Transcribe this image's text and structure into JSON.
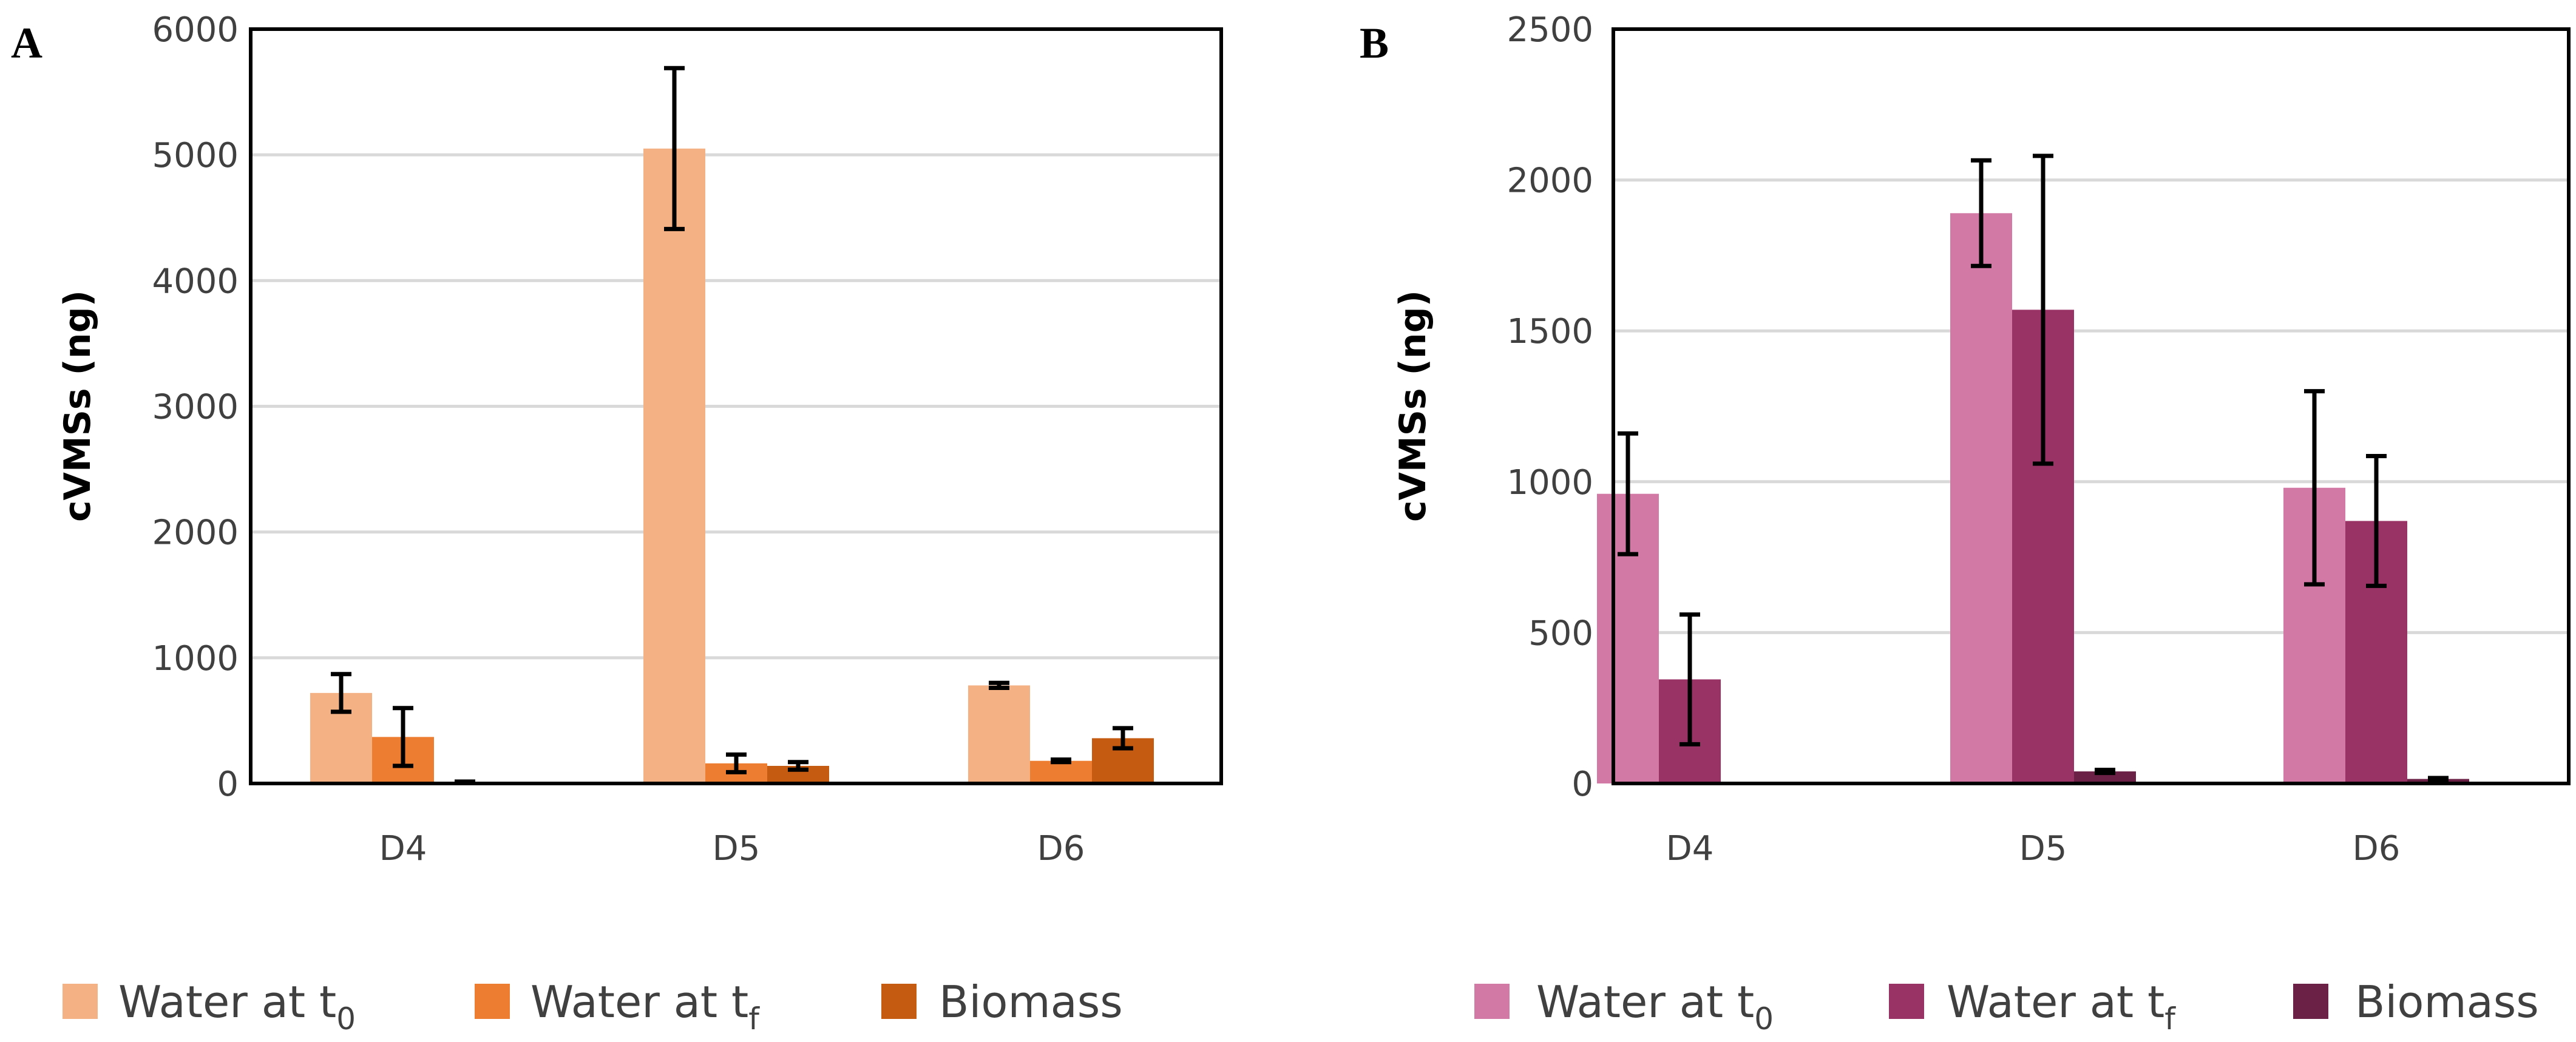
{
  "chart_data": [
    {
      "type": "bar",
      "panel_label": "A",
      "ylabel": "cVMSs (ng)",
      "xlabel": "",
      "ylim": [
        0,
        6000
      ],
      "yticks": [
        0,
        1000,
        2000,
        3000,
        4000,
        5000,
        6000
      ],
      "grid": true,
      "categories": [
        "D4",
        "D5",
        "D6"
      ],
      "series": [
        {
          "name": "Water at t",
          "subscript": "0",
          "color": "#f4b183",
          "values": [
            720,
            5050,
            780
          ],
          "errors": [
            150,
            640,
            20
          ]
        },
        {
          "name": "Water at t",
          "subscript": "f",
          "color": "#ed7d31",
          "values": [
            370,
            160,
            180
          ],
          "errors": [
            230,
            70,
            10
          ]
        },
        {
          "name": "Biomass",
          "subscript": "",
          "color": "#c55a11",
          "values": [
            10,
            140,
            360
          ],
          "errors": [
            5,
            30,
            80
          ]
        }
      ],
      "legend_position": "bottom"
    },
    {
      "type": "bar",
      "panel_label": "B",
      "ylabel": "cVMSs (ng)",
      "xlabel": "",
      "ylim": [
        0,
        2500
      ],
      "yticks": [
        0,
        500,
        1000,
        1500,
        2000,
        2500
      ],
      "grid": true,
      "categories": [
        "D4",
        "D5",
        "D6"
      ],
      "series": [
        {
          "name": "Water at t",
          "subscript": "0",
          "color": "#d279a5",
          "values": [
            960,
            1890,
            980
          ],
          "errors": [
            200,
            175,
            320
          ]
        },
        {
          "name": "Water at t",
          "subscript": "f",
          "color": "#993366",
          "values": [
            345,
            1570,
            870
          ],
          "errors": [
            215,
            510,
            215
          ]
        },
        {
          "name": "Biomass",
          "subscript": "",
          "color": "#6b2146",
          "values": [
            0,
            40,
            15
          ],
          "errors": [
            0,
            5,
            3
          ]
        }
      ],
      "legend_position": "bottom"
    }
  ]
}
